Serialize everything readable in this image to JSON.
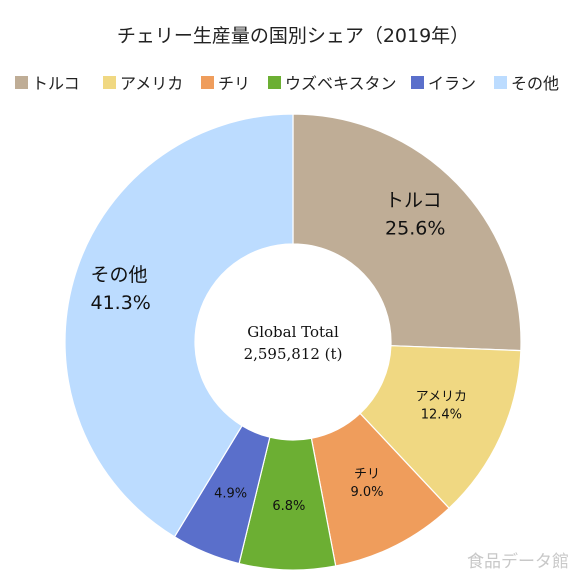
{
  "chart_data": {
    "type": "pie",
    "style": "donut",
    "title": "チェリー生産量の国別シェア（2019年）",
    "legend_position": "top",
    "center_label": "Global Total",
    "center_value": "2,595,812 (t)",
    "slices": [
      {
        "name": "トルコ",
        "value": 25.6,
        "label": "25.6%",
        "color": "#bfad96"
      },
      {
        "name": "アメリカ",
        "value": 12.4,
        "label": "12.4%",
        "color": "#f0d882"
      },
      {
        "name": "チリ",
        "value": 9.0,
        "label": "9.0%",
        "color": "#ef9d5c"
      },
      {
        "name": "ウズベキスタン",
        "value": 6.8,
        "label": "6.8%",
        "color": "#6caf33"
      },
      {
        "name": "イラン",
        "value": 4.9,
        "label": "4.9%",
        "color": "#5a6fcb"
      },
      {
        "name": "その他",
        "value": 41.3,
        "label": "41.3%",
        "color": "#bcdcff"
      }
    ]
  },
  "watermark": "食品データ館"
}
